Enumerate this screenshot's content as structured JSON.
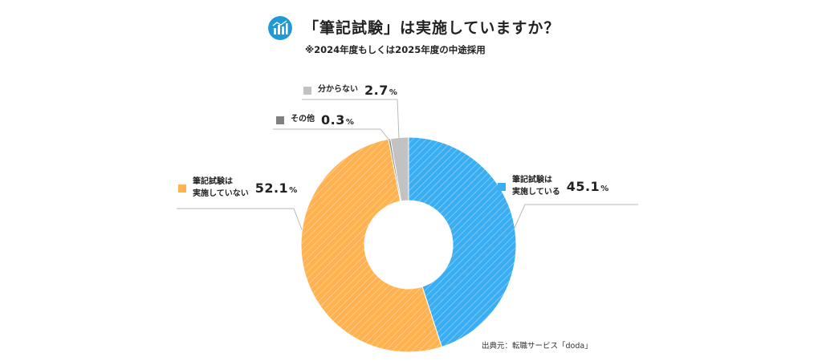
{
  "header": {
    "title": "「筆記試験」は実施していますか？",
    "subtitle": "※2024年度もしくは2025年度の中途採用",
    "logo_icon": "chart-logo-icon"
  },
  "chart_data": {
    "type": "pie",
    "donut": true,
    "title": "「筆記試験」は実施していますか？",
    "subtitle": "※2024年度もしくは2025年度の中途採用",
    "slices": [
      {
        "label": "筆記試験は実施している",
        "label_lines": [
          "筆記試験は",
          "実施している"
        ],
        "value": 45.1,
        "pct": "45.1",
        "color": "#3aaef2",
        "hatched": true
      },
      {
        "label": "筆記試験は実施していない",
        "label_lines": [
          "筆記試験は",
          "実施していない"
        ],
        "value": 52.1,
        "pct": "52.1",
        "color": "#ffb24f",
        "hatched": true
      },
      {
        "label": "その他",
        "value": 0.3,
        "pct": "0.3",
        "color": "#808080",
        "hatched": false
      },
      {
        "label": "分からない",
        "value": 2.7,
        "pct": "2.7",
        "color": "#c2c2c2",
        "hatched": false
      }
    ],
    "unit": "%",
    "source": "出典元：転職サービス「doda」"
  }
}
